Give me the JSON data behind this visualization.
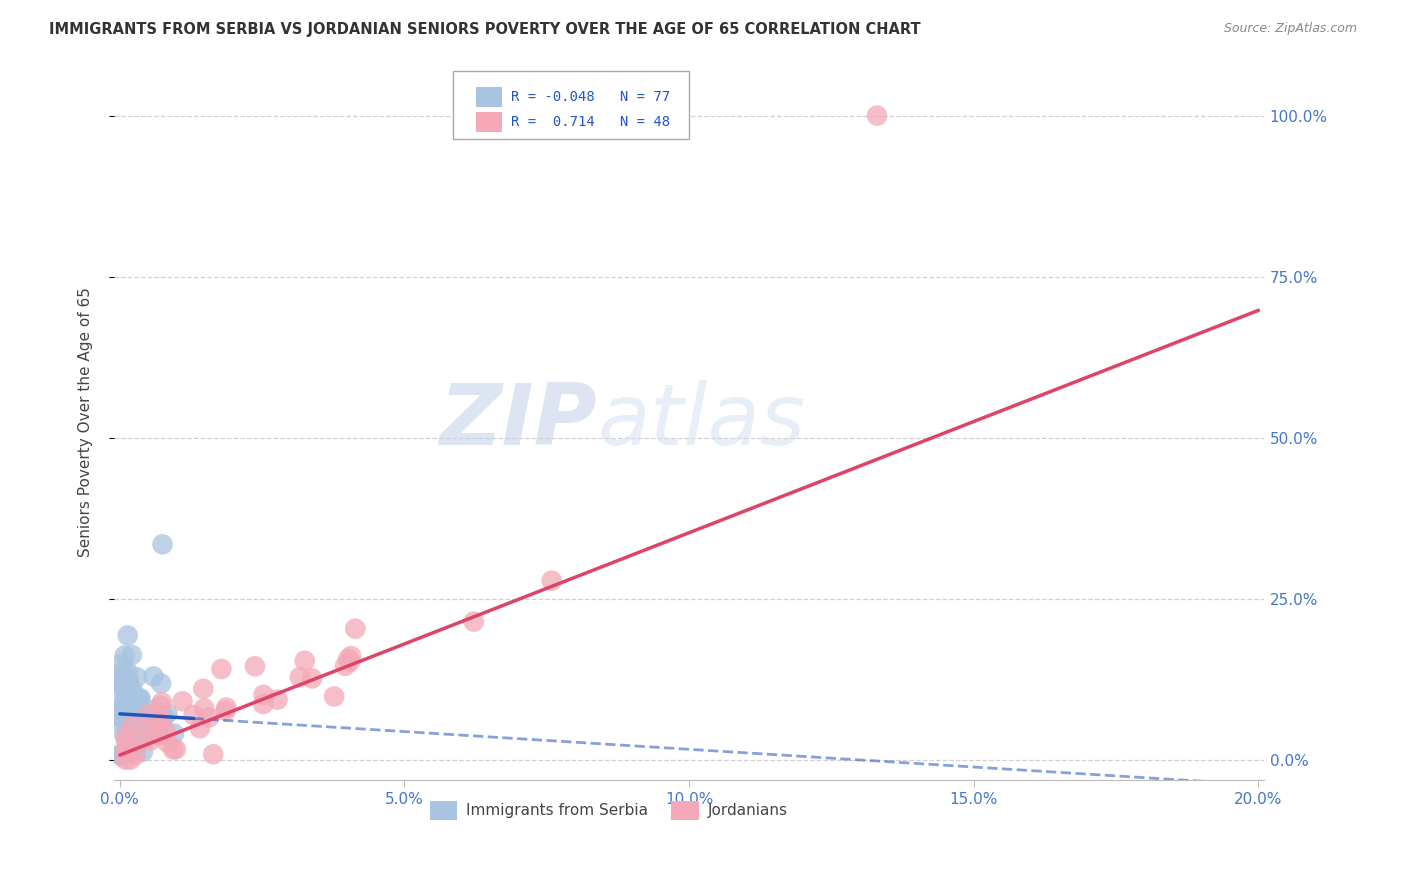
{
  "title": "IMMIGRANTS FROM SERBIA VS JORDANIAN SENIORS POVERTY OVER THE AGE OF 65 CORRELATION CHART",
  "source": "Source: ZipAtlas.com",
  "ylabel": "Seniors Poverty Over the Age of 65",
  "xlim": [
    -0.001,
    0.201
  ],
  "ylim": [
    -0.03,
    1.08
  ],
  "xtick_values": [
    0.0,
    0.05,
    0.1,
    0.15,
    0.2
  ],
  "xtick_labels": [
    "0.0%",
    "5.0%",
    "10.0%",
    "15.0%",
    "20.0%"
  ],
  "ytick_values": [
    0.0,
    0.25,
    0.5,
    0.75,
    1.0
  ],
  "ytick_labels": [
    "0.0%",
    "25.0%",
    "50.0%",
    "75.0%",
    "100.0%"
  ],
  "legend_labels": [
    "Immigrants from Serbia",
    "Jordanians"
  ],
  "serbia_color": "#a8c4e0",
  "jordan_color": "#f4a8b8",
  "serbia_line_color": "#2255bb",
  "jordan_line_color": "#dd4466",
  "watermark_zip": "ZIP",
  "watermark_atlas": "atlas",
  "background_color": "#ffffff",
  "grid_color": "#cccccc",
  "tick_color": "#4477cc",
  "title_color": "#333333",
  "source_color": "#888888"
}
